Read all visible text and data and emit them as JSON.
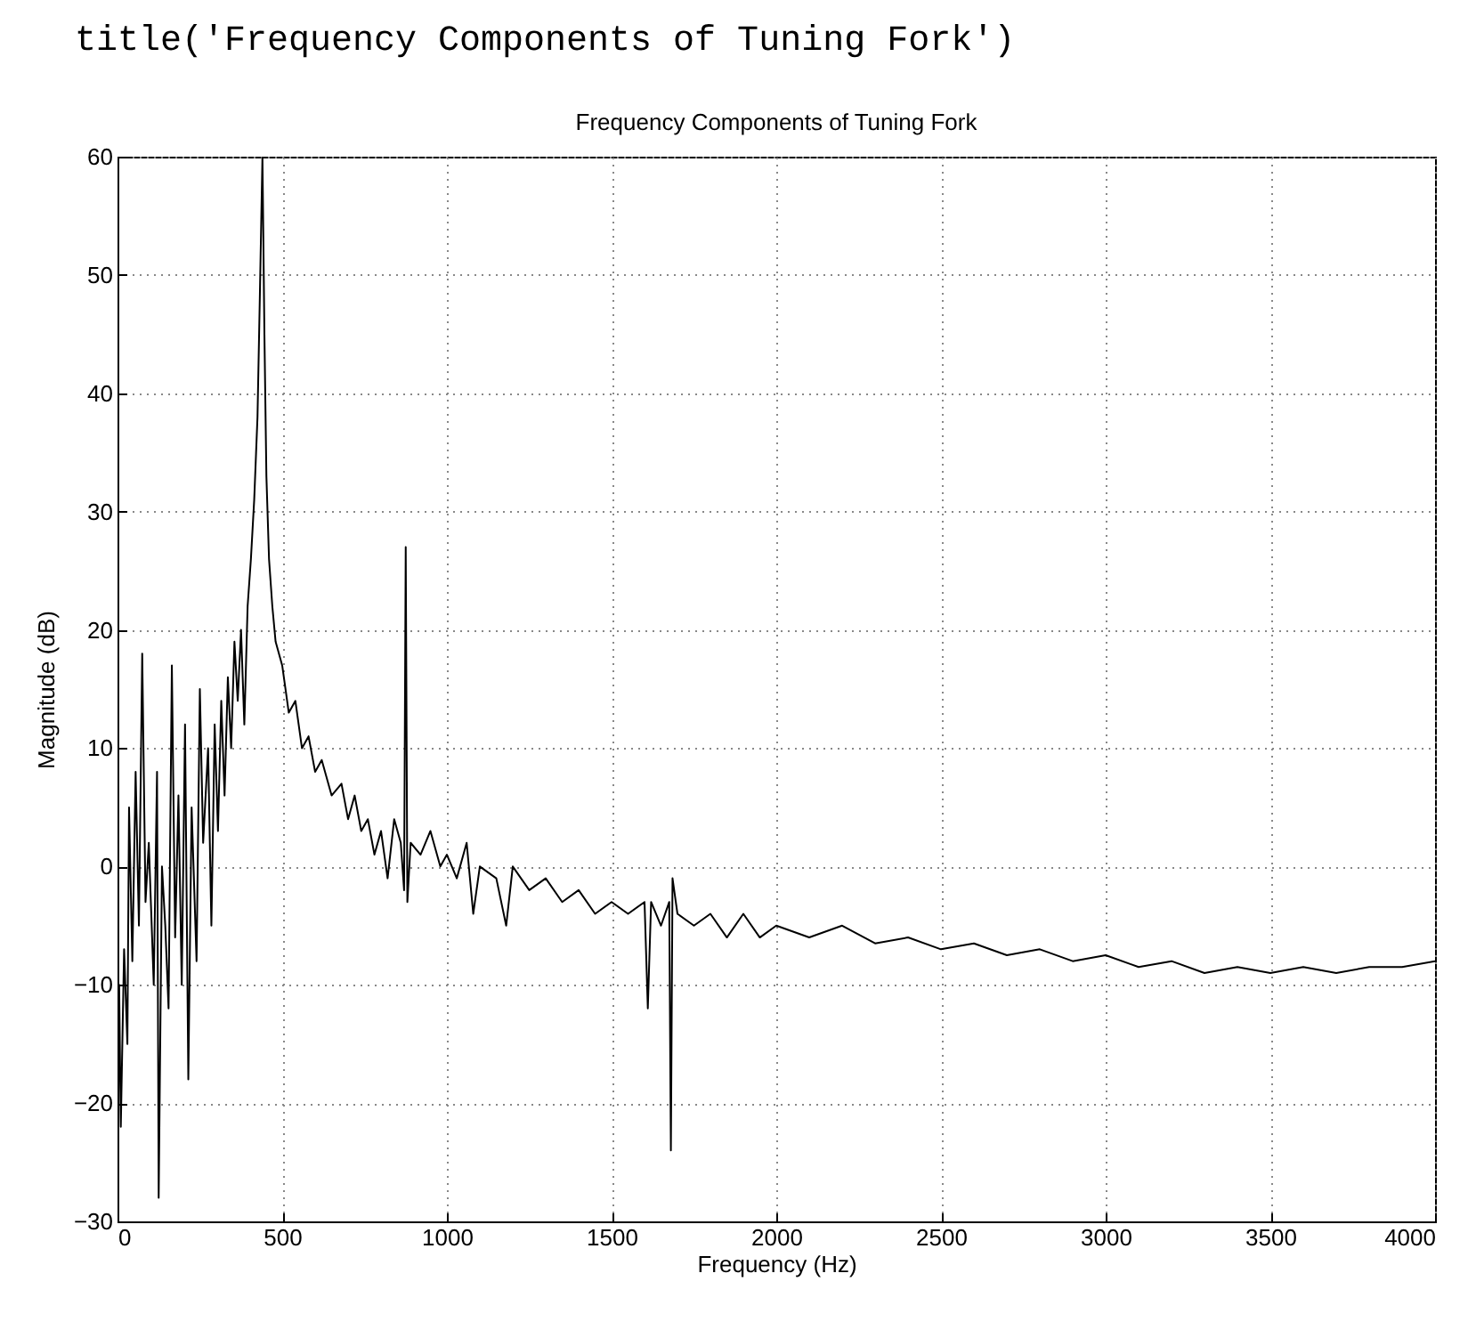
{
  "chart_data": {
    "type": "line",
    "title": "Frequency Components of Tuning Fork",
    "xlabel": "Frequency (Hz)",
    "ylabel": "Magnitude (dB)",
    "annotations": [
      "title('Frequency Components of Tuning Fork')"
    ],
    "xlim": [
      0,
      4000
    ],
    "xticks": [
      0,
      500,
      1000,
      1500,
      2000,
      2500,
      3000,
      3500,
      4000
    ],
    "ylim": [
      -30,
      60
    ],
    "yticks": [
      -30,
      -20,
      -10,
      0,
      10,
      20,
      30,
      40,
      50,
      60
    ],
    "grid": true,
    "legend": false,
    "marker": "none",
    "line_style": "solid",
    "x": [
      0,
      5,
      10,
      20,
      30,
      35,
      45,
      55,
      65,
      75,
      85,
      95,
      110,
      120,
      125,
      135,
      145,
      155,
      165,
      175,
      185,
      195,
      205,
      215,
      225,
      240,
      250,
      260,
      275,
      285,
      295,
      305,
      315,
      325,
      335,
      345,
      355,
      365,
      375,
      385,
      395,
      405,
      415,
      425,
      432,
      440,
      446,
      452,
      460,
      470,
      480,
      500,
      520,
      540,
      560,
      580,
      600,
      620,
      650,
      680,
      700,
      720,
      740,
      760,
      780,
      800,
      820,
      840,
      860,
      870,
      875,
      880,
      890,
      920,
      950,
      980,
      1000,
      1030,
      1060,
      1080,
      1100,
      1150,
      1180,
      1200,
      1250,
      1300,
      1350,
      1400,
      1450,
      1500,
      1550,
      1600,
      1610,
      1620,
      1650,
      1675,
      1680,
      1685,
      1700,
      1750,
      1800,
      1850,
      1900,
      1950,
      2000,
      2100,
      2200,
      2300,
      2400,
      2500,
      2600,
      2700,
      2800,
      2900,
      3000,
      3100,
      3200,
      3300,
      3400,
      3500,
      3600,
      3700,
      3800,
      3900,
      4000
    ],
    "series": [
      {
        "color": "#000000",
        "values": [
          -30,
          -10,
          -22,
          -7,
          -15,
          5,
          -8,
          8,
          -5,
          18,
          -3,
          2,
          -10,
          8,
          -28,
          0,
          -5,
          -12,
          17,
          -6,
          6,
          -10,
          12,
          -18,
          5,
          -8,
          15,
          2,
          10,
          -5,
          12,
          3,
          14,
          6,
          16,
          10,
          19,
          14,
          20,
          12,
          22,
          26,
          31,
          38,
          48,
          60,
          45,
          33,
          26,
          22,
          19,
          17,
          13,
          14,
          10,
          11,
          8,
          9,
          6,
          7,
          4,
          6,
          3,
          4,
          1,
          3,
          -1,
          4,
          2,
          -2,
          27,
          -3,
          2,
          1,
          3,
          0,
          1,
          -1,
          2,
          -4,
          0,
          -1,
          -5,
          0,
          -2,
          -1,
          -3,
          -2,
          -4,
          -3,
          -4,
          -3,
          -12,
          -3,
          -5,
          -3,
          -24,
          -1,
          -4,
          -5,
          -4,
          -6,
          -4,
          -6,
          -5,
          -6,
          -5,
          -6.5,
          -6,
          -7,
          -6.5,
          -7.5,
          -7,
          -8,
          -7.5,
          -8.5,
          -8,
          -9,
          -8.5,
          -9,
          -8.5,
          -9,
          -8.5,
          -8.5,
          -8
        ]
      }
    ]
  }
}
